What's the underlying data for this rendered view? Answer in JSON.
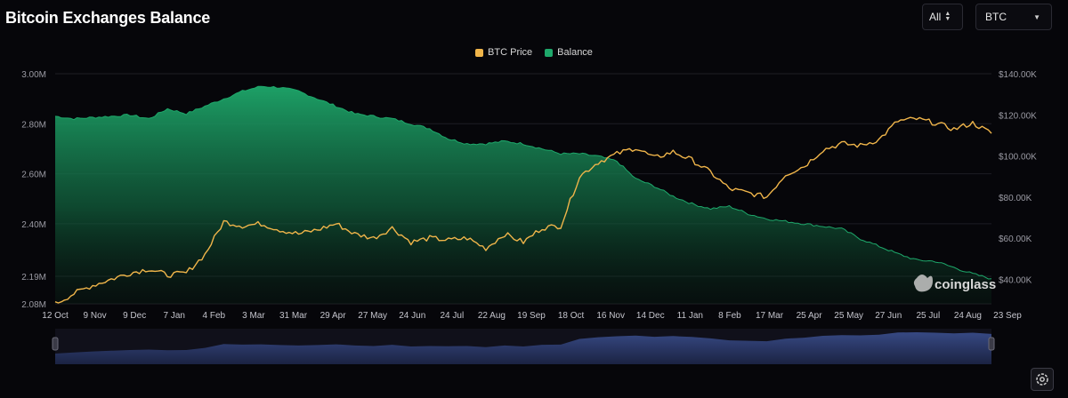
{
  "header": {
    "title": "Bitcoin Exchanges Balance",
    "range_select": "All",
    "asset_select": "BTC"
  },
  "colors": {
    "btc_price": "#f0b54a",
    "balance": "#1ea86b",
    "background": "#06060a"
  },
  "watermark": "coinglass",
  "chart_data": {
    "type": "area",
    "title": "Bitcoin Exchanges Balance",
    "legend": {
      "placement": "top-center",
      "entries": [
        "BTC Price",
        "Balance"
      ]
    },
    "x_tick_labels": [
      "12 Oct",
      "9 Nov",
      "9 Dec",
      "7 Jan",
      "4 Feb",
      "3 Mar",
      "31 Mar",
      "29 Apr",
      "27 May",
      "24 Jun",
      "24 Jul",
      "22 Aug",
      "19 Sep",
      "18 Oct",
      "16 Nov",
      "14 Dec",
      "11 Jan",
      "8 Feb",
      "17 Mar",
      "25 Apr",
      "25 May",
      "27 Jun",
      "25 Jul",
      "24 Aug",
      "23 Sep"
    ],
    "y_left": {
      "label": "",
      "tick_labels": [
        "3.00M",
        "2.80M",
        "2.60M",
        "2.40M",
        "2.19M",
        "2.08M"
      ],
      "range": [
        2080000,
        3000000
      ]
    },
    "y_right": {
      "label": "",
      "tick_labels": [
        "$140.00K",
        "$120.00K",
        "$100.00K",
        "$80.00K",
        "$60.00K",
        "$40.00K"
      ],
      "range": [
        28000,
        140000
      ]
    },
    "grid": "horizontal",
    "series": [
      {
        "name": "Balance",
        "type": "area",
        "axis": "left",
        "values": [
          2830000,
          2820000,
          2825000,
          2830000,
          2835000,
          2820000,
          2860000,
          2840000,
          2870000,
          2900000,
          2930000,
          2950000,
          2945000,
          2930000,
          2900000,
          2870000,
          2840000,
          2830000,
          2820000,
          2800000,
          2780000,
          2740000,
          2720000,
          2720000,
          2730000,
          2720000,
          2700000,
          2680000,
          2680000,
          2670000,
          2650000,
          2580000,
          2550000,
          2510000,
          2480000,
          2460000,
          2470000,
          2440000,
          2420000,
          2410000,
          2400000,
          2390000,
          2380000,
          2340000,
          2310000,
          2280000,
          2255000,
          2250000,
          2225000,
          2200000,
          2180000
        ]
      },
      {
        "name": "BTC Price",
        "type": "line",
        "axis": "right",
        "values": [
          28000,
          33000,
          37000,
          40000,
          43000,
          45000,
          42000,
          43000,
          52000,
          68000,
          66000,
          67000,
          64000,
          62000,
          64000,
          67000,
          62000,
          60000,
          65000,
          58000,
          60000,
          59000,
          60000,
          55000,
          62000,
          58000,
          65000,
          66000,
          90000,
          97000,
          101000,
          104000,
          99000,
          102000,
          98000,
          92000,
          84000,
          82000,
          80000,
          91000,
          95000,
          103000,
          106000,
          105000,
          108000,
          117000,
          118000,
          116000,
          113000,
          116000,
          111000
        ]
      }
    ]
  }
}
